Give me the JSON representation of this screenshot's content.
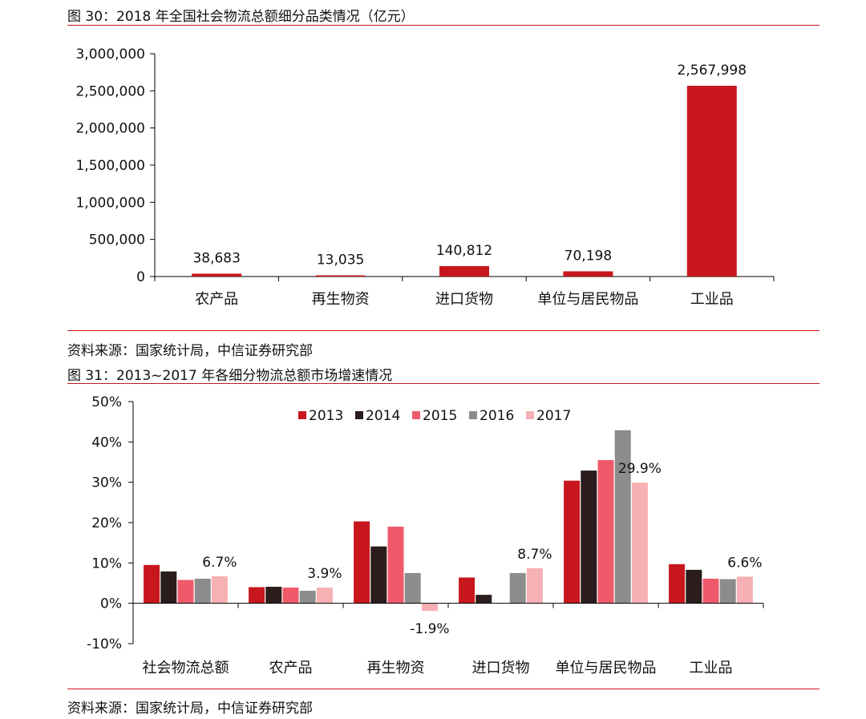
{
  "figure1": {
    "title": "图 30：2018 年全国社会物流总额细分品类情况（亿元）",
    "source": "资料来源：国家统计局，中信证券研究部"
  },
  "figure2": {
    "title": "图 31：2013~2017 年各细分物流总额市场增速情况",
    "source": "资料来源：国家统计局，中信证券研究部"
  },
  "colors": {
    "accent": "#c8161d",
    "series": [
      "#c8161d",
      "#2a1d1b",
      "#ef5a6b",
      "#8c8c8c",
      "#f7b0b4"
    ]
  },
  "chart_data": [
    {
      "type": "bar",
      "title": "",
      "categories": [
        "农产品",
        "再生物资",
        "进口货物",
        "单位与居民物品",
        "工业品"
      ],
      "values": [
        38683,
        13035,
        140812,
        70198,
        2567998
      ],
      "value_labels": [
        "38,683",
        "13,035",
        "140,812",
        "70,198",
        "2,567,998"
      ],
      "ylim": [
        0,
        3000000
      ],
      "yticks": [
        0,
        500000,
        1000000,
        1500000,
        2000000,
        2500000,
        3000000
      ],
      "ytick_labels": [
        "0",
        "500,000",
        "1,000,000",
        "1,500,000",
        "2,000,000",
        "2,500,000",
        "3,000,000"
      ],
      "grid": false
    },
    {
      "type": "bar",
      "title": "",
      "categories": [
        "社会物流总额",
        "农产品",
        "再生物资",
        "进口货物",
        "单位与居民物品",
        "工业品"
      ],
      "series": [
        {
          "name": "2013",
          "values": [
            9.5,
            4.0,
            20.3,
            6.4,
            30.4,
            9.7
          ]
        },
        {
          "name": "2014",
          "values": [
            7.9,
            4.1,
            14.1,
            2.1,
            32.9,
            8.3
          ]
        },
        {
          "name": "2015",
          "values": [
            5.8,
            3.9,
            19.0,
            0.0,
            35.5,
            6.1
          ]
        },
        {
          "name": "2016",
          "values": [
            6.1,
            3.1,
            7.5,
            7.5,
            42.9,
            6.0
          ]
        },
        {
          "name": "2017",
          "values": [
            6.7,
            3.9,
            -1.9,
            8.7,
            29.9,
            6.6
          ]
        }
      ],
      "last_series_labels": [
        "6.7%",
        "3.9%",
        "-1.9%",
        "8.7%",
        "29.9%",
        "6.6%"
      ],
      "ylim": [
        -10,
        50
      ],
      "yticks": [
        -10,
        0,
        10,
        20,
        30,
        40,
        50
      ],
      "ytick_labels": [
        "-10%",
        "0%",
        "10%",
        "20%",
        "30%",
        "40%",
        "50%"
      ],
      "legend_position": "top-center",
      "grid": false
    }
  ]
}
